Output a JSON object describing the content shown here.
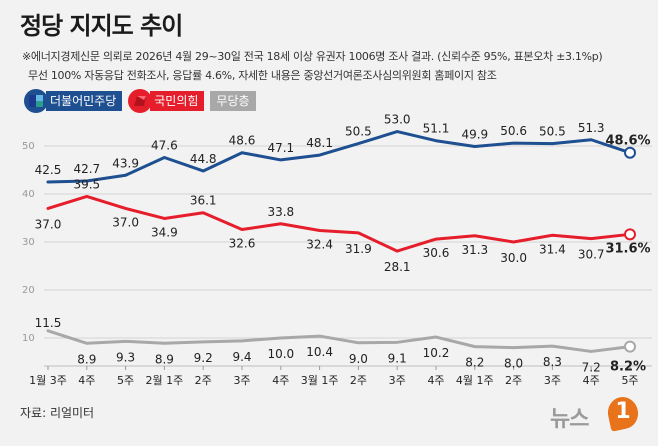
{
  "header": {
    "title": "정당 지지도 추이",
    "note_line1": "※에너지경제신문 의뢰로 2026년 4월 29~30일 전국 18세 이상 유권자 1006명 조사 결과. (신뢰수준 95%, 표본오차 ±3.1%p)",
    "note_line2": "무선 100% 자동응답 전화조사, 응답률 4.6%, 자세한 내용은 중앙선거여론조사심의위원회 홈페이지 참조"
  },
  "legend": {
    "items": [
      {
        "label": "더불어민주당",
        "color": "#1d4f91",
        "icon": "democratic-party-logo-icon"
      },
      {
        "label": "국민의힘",
        "color": "#e61e2b",
        "icon": "people-power-party-logo-icon"
      },
      {
        "label": "무당층",
        "color": "#a8a8a8",
        "icon": ""
      }
    ]
  },
  "footer": {
    "source": "자료: 리얼미터",
    "logo_text": "뉴스",
    "logo_num": "1"
  },
  "chart_data": {
    "type": "line",
    "x": [
      "1월 3주",
      "4주",
      "5주",
      "2월 1주",
      "2주",
      "3주",
      "4주",
      "3월 1주",
      "2주",
      "3주",
      "4주",
      "4월 1주",
      "2주",
      "3주",
      "4주",
      "5주"
    ],
    "ylim": [
      0,
      55
    ],
    "yticks": [
      10,
      20,
      30,
      40,
      50
    ],
    "grid": true,
    "series": [
      {
        "name": "더불어민주당",
        "color": "#1d4f91",
        "values": [
          42.5,
          42.7,
          43.9,
          47.6,
          44.8,
          48.6,
          47.1,
          48.1,
          50.5,
          53.0,
          51.1,
          49.9,
          50.6,
          50.5,
          51.3,
          48.6
        ],
        "labels": [
          "42.5",
          "42.7",
          "43.9",
          "47.6",
          "44.8",
          "48.6",
          "47.1",
          "48.1",
          "50.5",
          "53.0",
          "51.1",
          "49.9",
          "50.6",
          "50.5",
          "51.3",
          "48.6%"
        ]
      },
      {
        "name": "국민의힘",
        "color": "#e61e2b",
        "values": [
          37.0,
          39.5,
          37.0,
          34.9,
          36.1,
          32.6,
          33.8,
          32.4,
          31.9,
          28.1,
          30.6,
          31.3,
          30.0,
          31.4,
          30.7,
          31.6
        ],
        "labels": [
          "37.0",
          "39.5",
          "37.0",
          "34.9",
          "36.1",
          "32.6",
          "33.8",
          "32.4",
          "31.9",
          "28.1",
          "30.6",
          "31.3",
          "30.0",
          "31.4",
          "30.7",
          "31.6%"
        ]
      },
      {
        "name": "무당층",
        "color": "#a8a8a8",
        "values": [
          11.5,
          8.9,
          9.3,
          8.9,
          9.2,
          9.4,
          10.0,
          10.4,
          9.0,
          9.1,
          10.2,
          8.2,
          8.0,
          8.3,
          7.2,
          8.2
        ],
        "labels": [
          "11.5",
          "8.9",
          "9.3",
          "8.9",
          "9.2",
          "9.4",
          "10.0",
          "10.4",
          "9.0",
          "9.1",
          "10.2",
          "8.2",
          "8.0",
          "8.3",
          "7.2",
          "8.2%"
        ]
      }
    ]
  }
}
